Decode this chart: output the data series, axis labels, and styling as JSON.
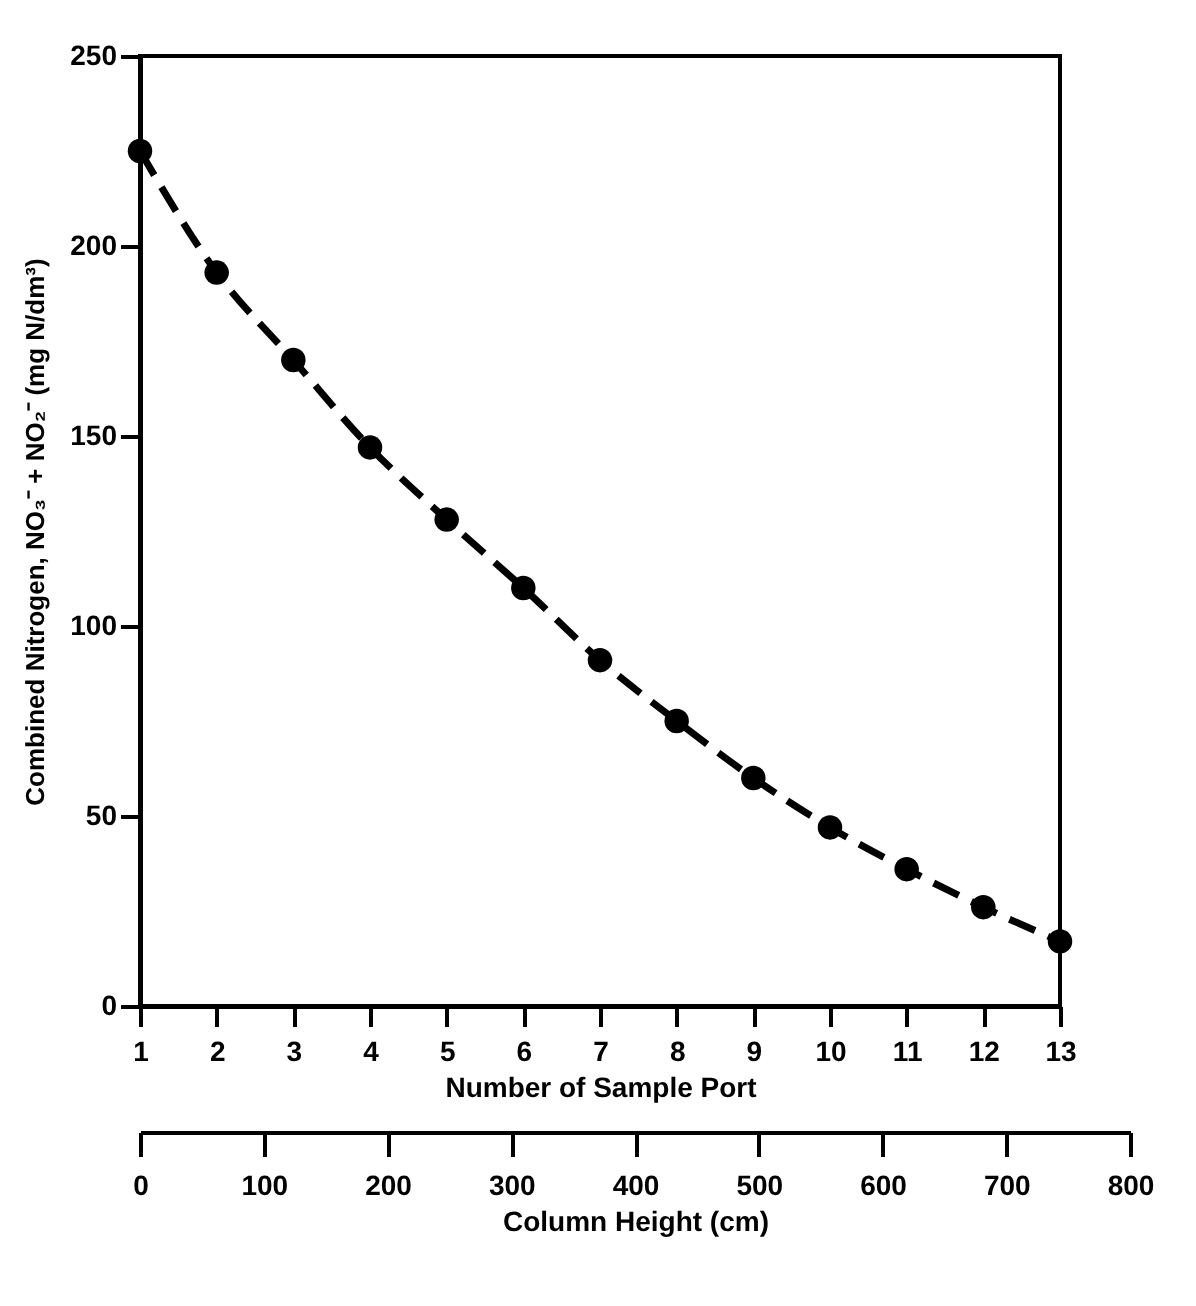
{
  "chart_data": {
    "type": "line",
    "xlabel": "Number of Sample Port",
    "ylabel": "Combined Nitrogen, NO₃⁻ + NO₂⁻ (mg N/dm³)",
    "x2label": "Column Height (cm)",
    "x": [
      1,
      2,
      3,
      4,
      5,
      6,
      7,
      8,
      9,
      10,
      11,
      12,
      13
    ],
    "series": [
      {
        "color": "#000000",
        "values": [
          225,
          193,
          170,
          147,
          128,
          110,
          91,
          75,
          60,
          47,
          36,
          26,
          17
        ]
      }
    ],
    "xlim": [
      1,
      13
    ],
    "xticks": [
      1,
      2,
      3,
      4,
      5,
      6,
      7,
      8,
      9,
      10,
      11,
      12,
      13
    ],
    "ylim": [
      0,
      250
    ],
    "yticks": [
      0,
      50,
      100,
      150,
      200,
      250
    ],
    "x2lim": [
      0,
      800
    ],
    "x2ticks": [
      0,
      100,
      200,
      300,
      400,
      500,
      600,
      700,
      800
    ],
    "marker": "circle",
    "line_style": "dashed",
    "grid": false
  }
}
